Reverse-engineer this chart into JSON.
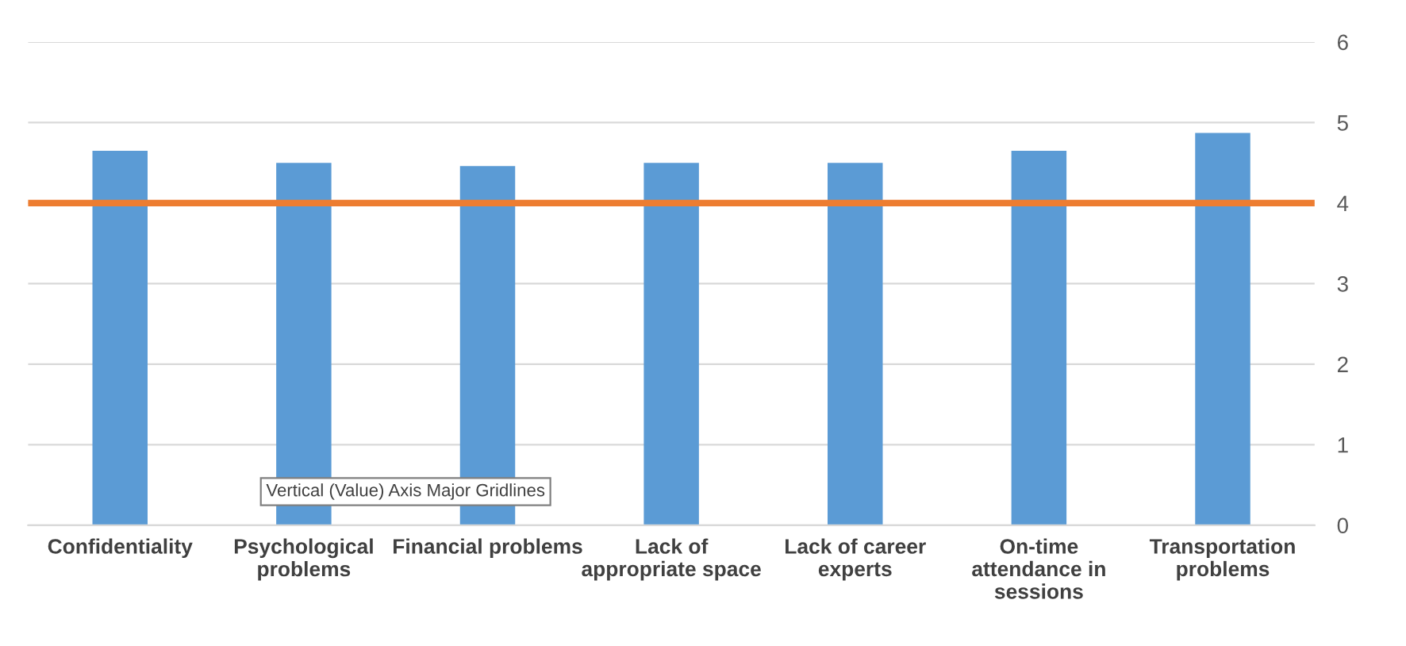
{
  "chart_data": {
    "type": "bar",
    "categories": [
      "Confidentiality",
      "Psychological\nproblems",
      "Financial problems",
      "Lack of\nappropriate space",
      "Lack of career\nexperts",
      "On-time\nattendance in\nsessions",
      "Transportation\nproblems"
    ],
    "values": [
      4.65,
      4.5,
      4.46,
      4.5,
      4.5,
      4.65,
      4.87
    ],
    "color": "#5b9bd5",
    "ylim": [
      0,
      6
    ],
    "yticks": [
      0,
      1,
      2,
      3,
      4,
      5,
      6
    ],
    "grid": "y",
    "ref_lines": [
      {
        "axis": "y",
        "value": 4,
        "color": "#ed7d31"
      }
    ],
    "annotations": [
      "Vertical (Value) Axis Major Gridlines"
    ]
  }
}
